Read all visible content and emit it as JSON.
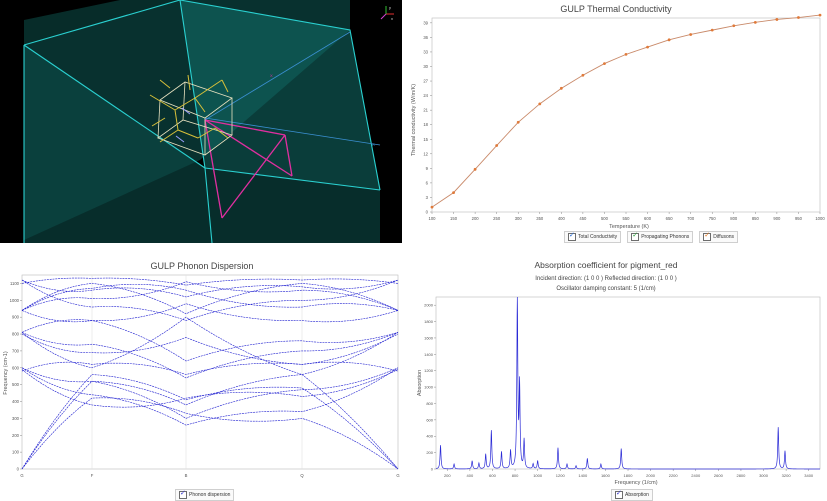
{
  "viewer": {
    "axis_icon": "axes-triad-icon"
  },
  "thermal": {
    "title": "GULP Thermal Conductivity",
    "legend": [
      "Total Conductivity",
      "Propagating Phonons",
      "Diffusons"
    ],
    "chart_data": {
      "type": "line",
      "title": "GULP Thermal Conductivity",
      "xlabel": "Temperature (K)",
      "ylabel": "Thermal conductivity (W/m/K)",
      "xlim": [
        100,
        1000
      ],
      "ylim": [
        0,
        40
      ],
      "x_ticks": [
        100,
        150,
        200,
        250,
        300,
        350,
        400,
        450,
        500,
        550,
        600,
        650,
        700,
        750,
        800,
        850,
        900,
        950,
        1000
      ],
      "y_ticks": [
        0,
        3,
        6,
        9,
        12,
        15,
        18,
        21,
        24,
        27,
        30,
        33,
        36,
        39
      ],
      "series": [
        {
          "name": "Total Conductivity",
          "x": [
            100,
            150,
            200,
            250,
            300,
            350,
            400,
            450,
            500,
            550,
            600,
            650,
            700,
            750,
            800,
            850,
            900,
            950,
            1000
          ],
          "y": [
            1.0,
            4.0,
            8.8,
            13.7,
            18.5,
            22.3,
            25.5,
            28.2,
            30.6,
            32.5,
            34.0,
            35.5,
            36.6,
            37.5,
            38.4,
            39.1,
            39.7,
            40.1,
            40.6
          ]
        }
      ],
      "grid": false,
      "color": "#c98a6a"
    }
  },
  "dispersion": {
    "title": "GULP Phonon Dispersion",
    "legend": [
      "Phonon dispersion"
    ],
    "chart_data": {
      "type": "line",
      "title": "GULP Phonon Dispersion",
      "xlabel": "",
      "ylabel": "Frequency (cm-1)",
      "x_tick_labels": [
        "G",
        "F",
        "B",
        "Q",
        "G"
      ],
      "ylim": [
        0,
        1150
      ],
      "y_ticks": [
        0,
        100,
        200,
        300,
        400,
        500,
        600,
        700,
        800,
        900,
        1000,
        1100
      ],
      "series_color": "#2020d0"
    }
  },
  "absorption": {
    "title": "Absorption coefficient for pigment_red",
    "subtitle1": "Incident direction: (1 0 0 ) Reflected direction: (1 0 0 )",
    "subtitle2": "Oscillator damping constant:  5  (1/cm)",
    "legend": [
      "Absorption"
    ],
    "chart_data": {
      "type": "line",
      "title": "Absorption coefficient for pigment_red",
      "xlabel": "Frequency (1/cm)",
      "ylabel": "Absorption",
      "xlim": [
        100,
        3500
      ],
      "ylim": [
        0,
        2100
      ],
      "x_ticks": [
        200,
        400,
        600,
        800,
        1000,
        1200,
        1400,
        1600,
        1800,
        2000,
        2200,
        2400,
        2600,
        2800,
        3000,
        3200,
        3400
      ],
      "y_ticks": [
        0,
        200,
        400,
        600,
        800,
        1000,
        1200,
        1400,
        1600,
        1800,
        2000
      ],
      "peaks": [
        {
          "x": 140,
          "y": 290
        },
        {
          "x": 260,
          "y": 60
        },
        {
          "x": 420,
          "y": 100
        },
        {
          "x": 480,
          "y": 70
        },
        {
          "x": 540,
          "y": 180
        },
        {
          "x": 590,
          "y": 470
        },
        {
          "x": 680,
          "y": 210
        },
        {
          "x": 760,
          "y": 220
        },
        {
          "x": 820,
          "y": 2100
        },
        {
          "x": 840,
          "y": 1000
        },
        {
          "x": 880,
          "y": 350
        },
        {
          "x": 960,
          "y": 60
        },
        {
          "x": 1000,
          "y": 100
        },
        {
          "x": 1180,
          "y": 260
        },
        {
          "x": 1260,
          "y": 60
        },
        {
          "x": 1340,
          "y": 40
        },
        {
          "x": 1440,
          "y": 130
        },
        {
          "x": 1560,
          "y": 60
        },
        {
          "x": 1740,
          "y": 250
        },
        {
          "x": 3130,
          "y": 510
        },
        {
          "x": 3190,
          "y": 220
        }
      ],
      "color": "#2a2ad6"
    }
  }
}
